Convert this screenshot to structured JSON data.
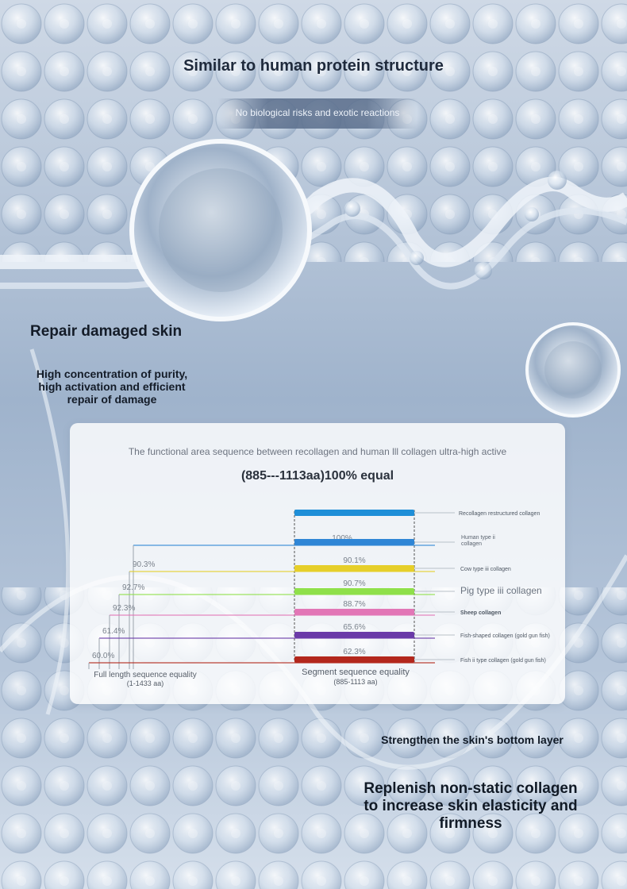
{
  "header": {
    "title": "Similar to human protein structure",
    "banner": "No biological risks and exotic reactions"
  },
  "left_block": {
    "heading": "Repair damaged skin",
    "body": "High concentration of purity, high activation and efficient repair of damage"
  },
  "card": {
    "title": "The functional area sequence between recollagen and human lll collagen ultra-high active",
    "subtitle": "(885---1113aa)100% equal",
    "chart_data": {
      "type": "bar",
      "categories": [
        "Recollagen restructured collagen",
        "Human type ii collagen",
        "Cow type iii collagen",
        "Pig type iii collagen",
        "Sheep collagen",
        "Fish-shaped collagen (gold gun fish)",
        "Fish ii type collagen (gold gun fish)"
      ],
      "series": [
        {
          "name": "Full length sequence equality",
          "values": [
            null,
            100,
            90.3,
            92.7,
            92.3,
            61.4,
            60.0
          ],
          "labels": [
            "",
            "100%",
            "90.3%",
            "92.7%",
            "92.3%",
            "61.4%",
            "60.0%"
          ]
        },
        {
          "name": "Segment sequence equality",
          "values": [
            100,
            100,
            90.1,
            90.7,
            88.7,
            65.6,
            62.3
          ],
          "labels": [
            "",
            "",
            "90.1%",
            "90.7%",
            "88.7%",
            "65.6%",
            "62.3%"
          ]
        }
      ],
      "bar_colors": [
        "#1f8fd8",
        "#2f86d6",
        "#e6cf2a",
        "#8fe04a",
        "#e276b6",
        "#6a3aa8",
        "#b3271c"
      ],
      "axis_label_full": "Full length sequence equality",
      "axis_label_full_range": "(1-1433 aa)",
      "axis_label_segment": "Segment sequence equality",
      "axis_label_segment_range": "(885-1113 aa)"
    }
  },
  "footer": {
    "strengthen": "Strengthen the skin's bottom layer",
    "replenish": "Replenish non-static collagen to increase skin elasticity and firmness"
  }
}
